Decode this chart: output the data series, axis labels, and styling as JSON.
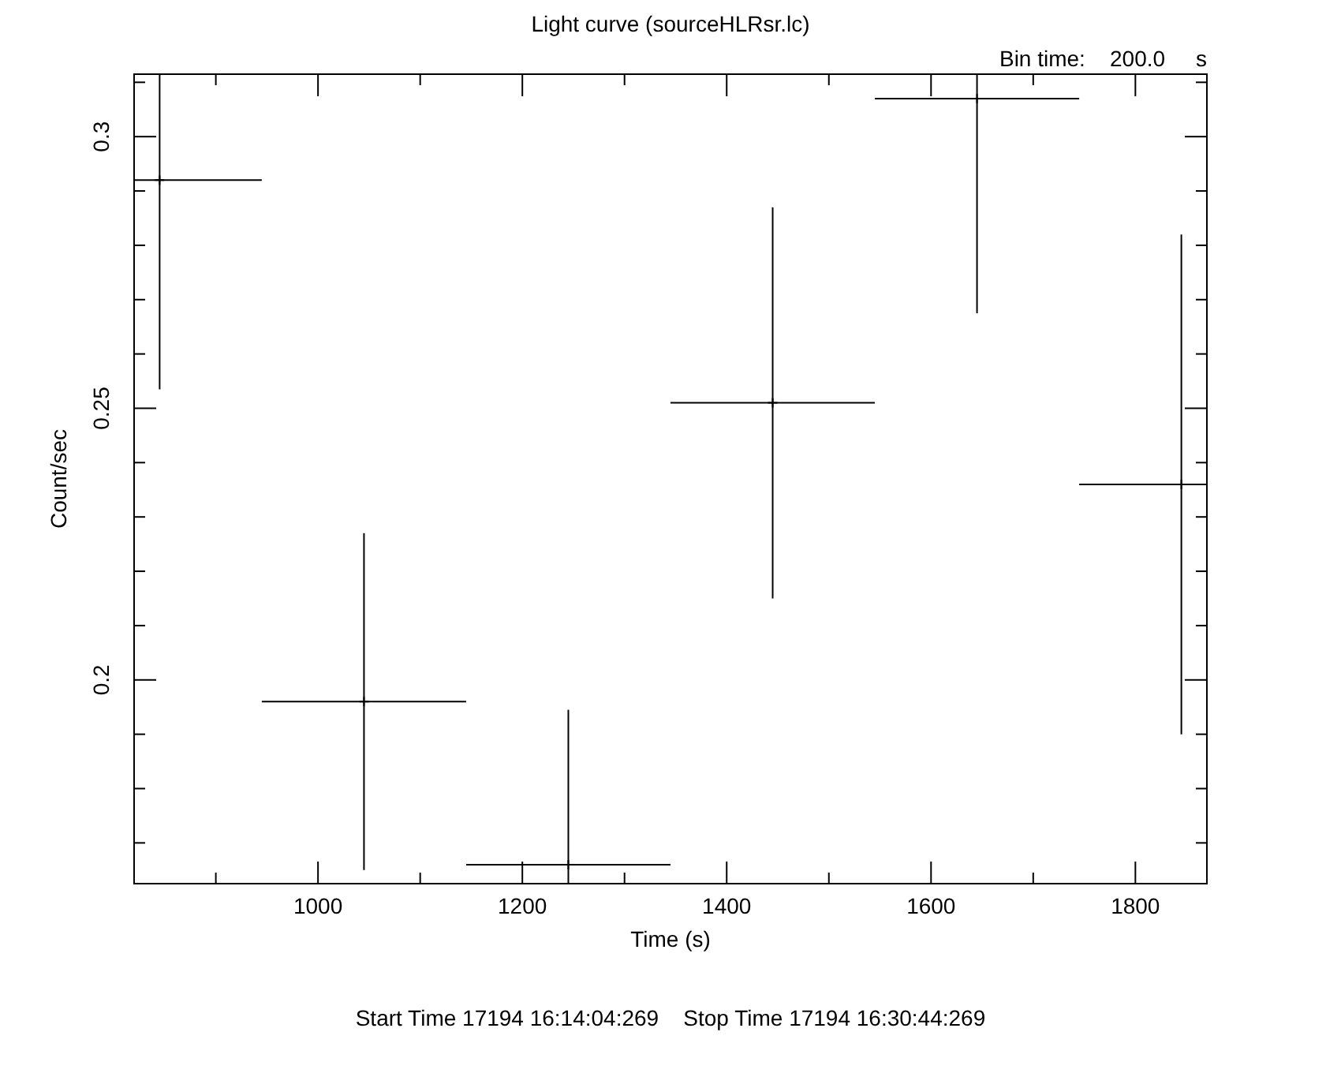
{
  "chart_data": {
    "type": "scatter",
    "title": "Light curve (sourceHLRsr.lc)",
    "xlabel": "Time (s)",
    "ylabel": "Count/sec",
    "marker": "cross",
    "annotations": [
      "Bin time:    200.0     s",
      "Start Time 17194 16:14:04:269    Stop Time 17194 16:30:44:269"
    ],
    "x": [
      845,
      1045,
      1245,
      1445,
      1645,
      1845
    ],
    "series": [
      {
        "color": "#000000",
        "values": [
          0.292,
          0.196,
          0.166,
          0.251,
          0.307,
          0.236
        ],
        "errors": [
          [
            0.2535,
            0.3115
          ],
          0.031,
          [
            0.1625,
            0.1945
          ],
          0.036,
          [
            0.2675,
            0.3115
          ],
          0.046
        ],
        "xerrors": [
          [
            820,
            945
          ],
          100,
          100,
          100,
          100,
          [
            1745,
            1870
          ]
        ]
      }
    ],
    "xlim": [
      820,
      1870
    ],
    "ylim": [
      0.1625,
      0.3115
    ],
    "xticks": [
      {
        "value": 900,
        "label": null
      },
      1000,
      {
        "value": 1100,
        "label": null
      },
      1200,
      {
        "value": 1300,
        "label": null
      },
      1400,
      {
        "value": 1500,
        "label": null
      },
      1600,
      {
        "value": 1700,
        "label": null
      },
      1800
    ],
    "yticks": [
      {
        "value": 0.17,
        "label": null
      },
      {
        "value": 0.18,
        "label": null
      },
      {
        "value": 0.19,
        "label": null
      },
      0.2,
      {
        "value": 0.21,
        "label": null
      },
      {
        "value": 0.22,
        "label": null
      },
      {
        "value": 0.23,
        "label": null
      },
      {
        "value": 0.24,
        "label": null
      },
      0.25,
      {
        "value": 0.26,
        "label": null
      },
      {
        "value": 0.27,
        "label": null
      },
      {
        "value": 0.28,
        "label": null
      },
      {
        "value": 0.29,
        "label": null
      },
      0.3,
      {
        "value": 0.31,
        "label": null
      }
    ]
  }
}
